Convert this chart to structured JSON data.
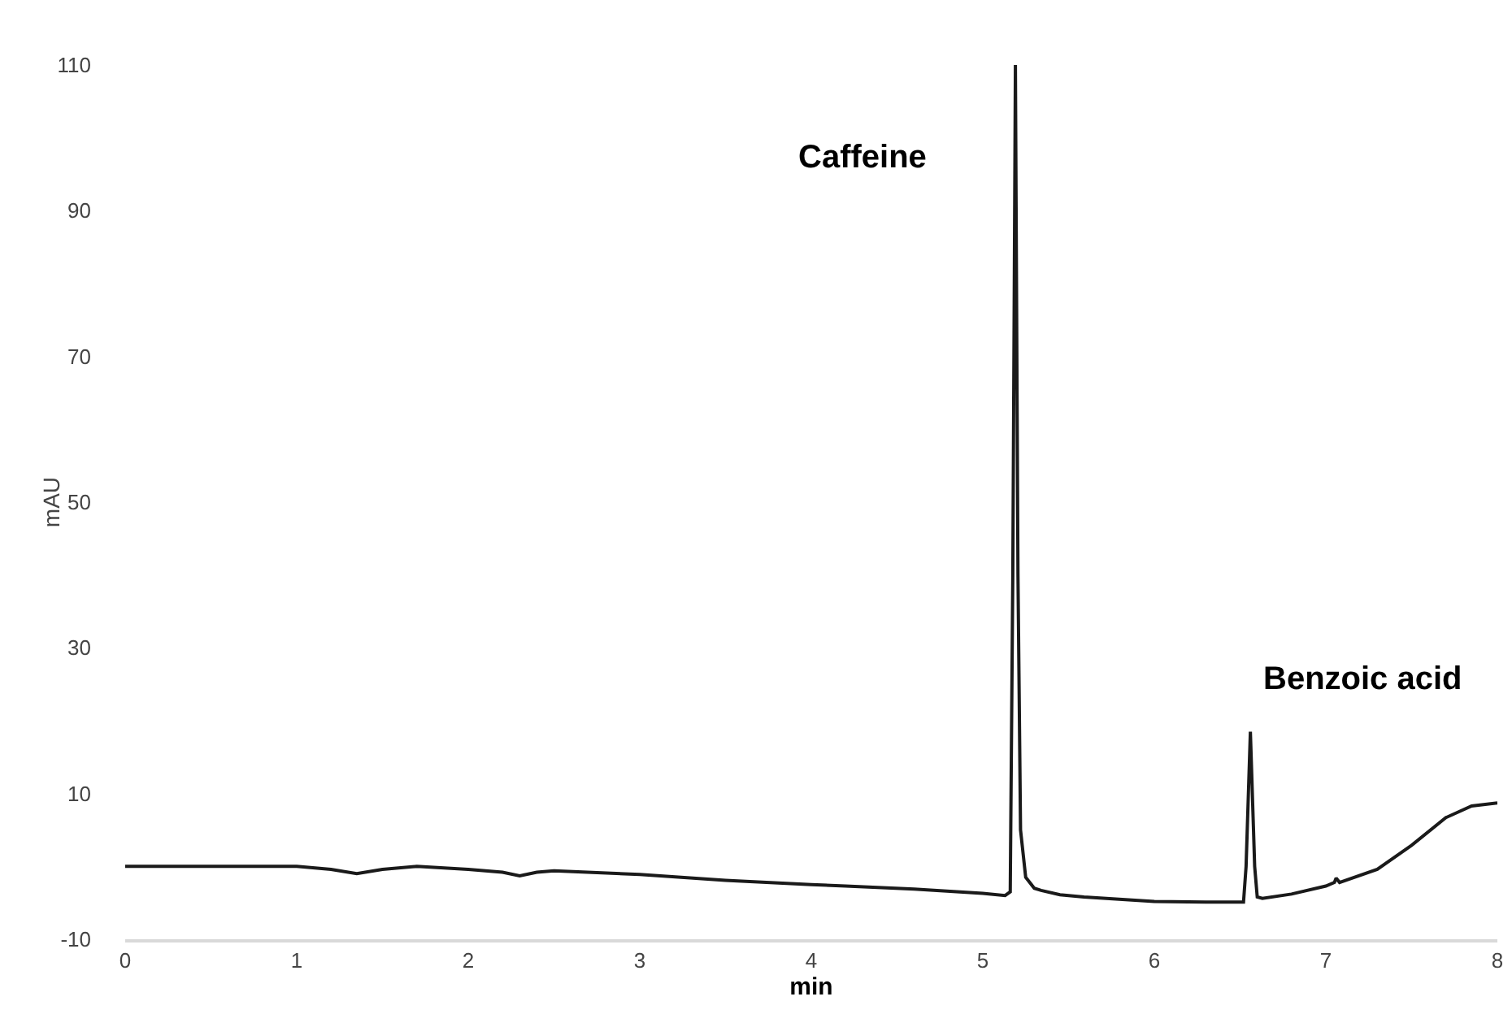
{
  "chart_data": {
    "type": "line",
    "xlabel": "min",
    "ylabel": "mAU",
    "x": [
      0,
      0.5,
      1,
      1.2,
      1.35,
      1.5,
      1.7,
      2,
      2.2,
      2.3,
      2.4,
      2.5,
      3,
      3.5,
      4,
      4.2,
      4.6,
      5,
      5.13,
      5.16,
      5.175,
      5.19,
      5.205,
      5.22,
      5.25,
      5.3,
      5.34,
      5.45,
      5.59,
      6,
      6.3,
      6.52,
      6.535,
      6.56,
      6.585,
      6.6,
      6.63,
      6.8,
      7,
      7.05,
      7.06,
      7.08,
      7.3,
      7.5,
      7.7,
      7.85,
      8
    ],
    "series": [
      {
        "color": "#1a1a1a",
        "values": [
          0,
          0,
          0,
          -0.4,
          -1,
          -0.4,
          0,
          -0.4,
          -0.8,
          -1.3,
          -0.8,
          -0.6,
          -1.1,
          -1.9,
          -2.5,
          -2.7,
          -3.1,
          -3.7,
          -4.0,
          -3.5,
          40,
          110,
          40,
          5,
          -1.5,
          -3,
          -3.3,
          -3.9,
          -4.2,
          -4.8,
          -4.9,
          -4.9,
          0,
          18.5,
          0,
          -4.2,
          -4.4,
          -3.8,
          -2.7,
          -2.2,
          -1.6,
          -2.2,
          -0.4,
          2.9,
          6.7,
          8.3,
          8.7
        ]
      }
    ],
    "annotations": [
      "Caffeine",
      "Benzoic acid"
    ],
    "xlim": [
      0,
      8
    ],
    "xticks": [
      0,
      1,
      2,
      3,
      4,
      5,
      6,
      7,
      8
    ],
    "ylim": [
      -10,
      110
    ],
    "yticks": [
      -10,
      10,
      30,
      50,
      70,
      90,
      110
    ],
    "grid": false,
    "marker": "none",
    "line_style": "solid"
  }
}
